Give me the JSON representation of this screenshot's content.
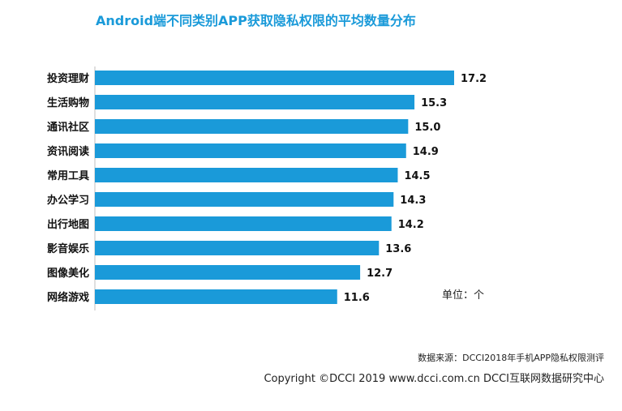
{
  "chart_data": {
    "type": "bar",
    "orientation": "horizontal",
    "title": "Android端不同类别APP获取隐私权限的平均数量分布",
    "categories": [
      "投资理财",
      "生活购物",
      "通讯社区",
      "资讯阅读",
      "常用工具",
      "办公学习",
      "出行地图",
      "影音娱乐",
      "图像美化",
      "网络游戏"
    ],
    "values": [
      17.2,
      15.3,
      15.0,
      14.9,
      14.5,
      14.3,
      14.2,
      13.6,
      12.7,
      11.6
    ],
    "value_labels": [
      "17.2",
      "15.3",
      "15.0",
      "14.9",
      "14.5",
      "14.3",
      "14.2",
      "13.6",
      "12.7",
      "11.6"
    ],
    "unit": "单位：个",
    "xlim": [
      0,
      17.2
    ],
    "grid": false,
    "bar_color": "#1a9ad9",
    "title_color": "#1a9ad9"
  },
  "footer": {
    "source": "数据来源：DCCI2018年手机APP隐私权限测评",
    "copyright": "Copyright ©DCCI 2019  www.dcci.com.cn   DCCI互联网数据研究中心"
  }
}
